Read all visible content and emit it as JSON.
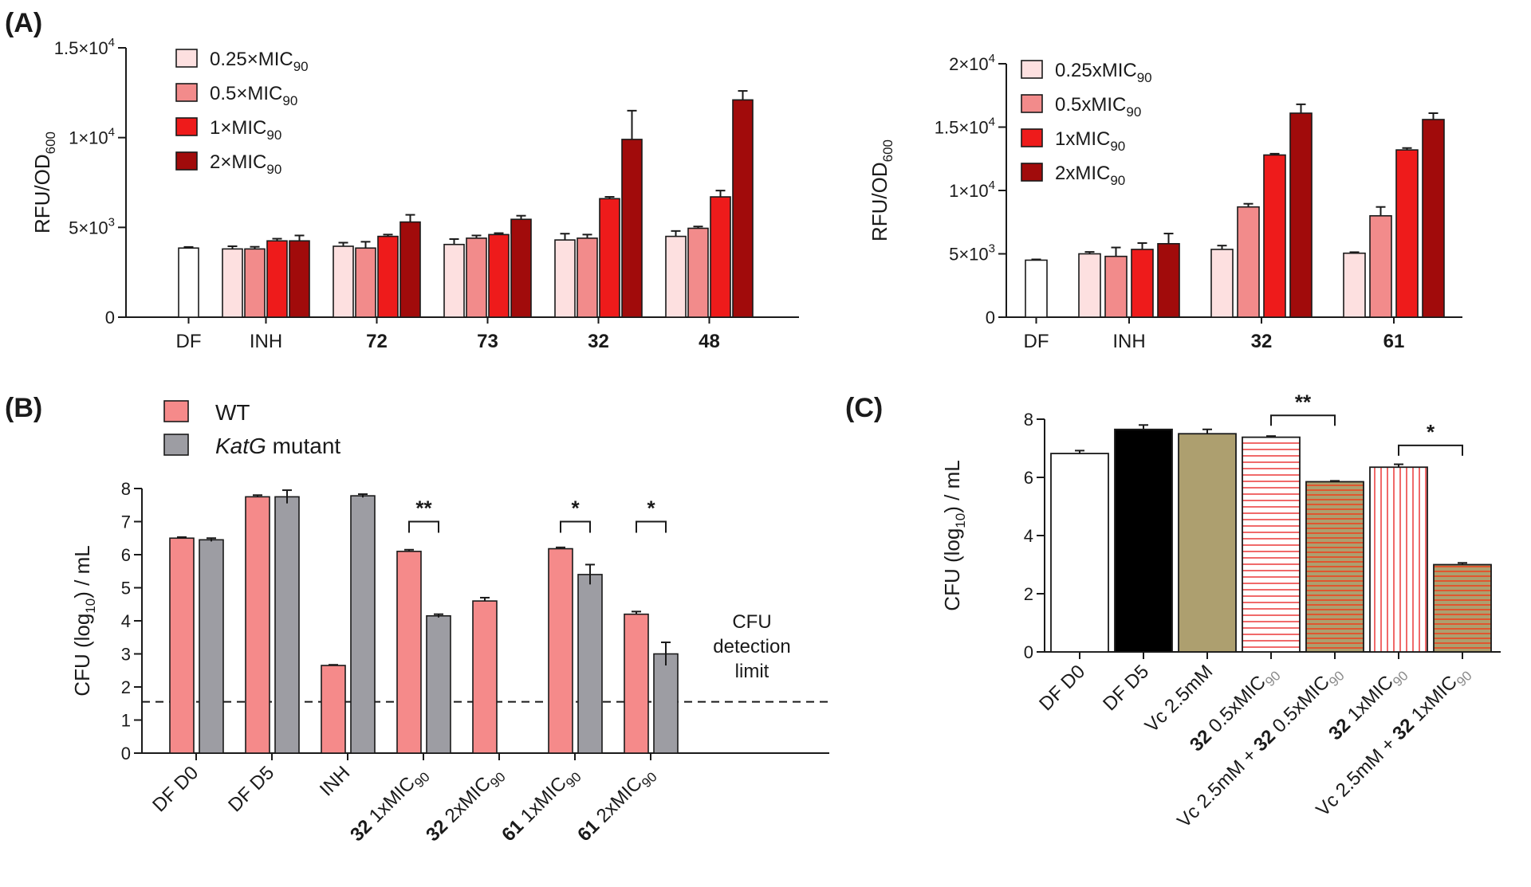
{
  "colors": {
    "mic025": "#fde0e0",
    "mic05": "#f28b8b",
    "mic1": "#ee1b1b",
    "mic2": "#a10b0b",
    "df": "#ffffff",
    "wt": "#f58a8a",
    "katg": "#9d9da3",
    "df_d5": "#000000",
    "vc": "#ad9f6f"
  },
  "chart_data": [
    {
      "id": "A-left",
      "type": "bar",
      "panel_label": "(A)",
      "ylabel": "RFU/OD",
      "ylabel_sub": "600",
      "ylim": [
        0,
        15000
      ],
      "yticks": [
        {
          "value": 0,
          "label": "0",
          "sup": ""
        },
        {
          "value": 5000,
          "label": "5×10",
          "sup": "3"
        },
        {
          "value": 10000,
          "label": "1×10",
          "sup": "4"
        },
        {
          "value": 15000,
          "label": "1.5×10",
          "sup": "4"
        }
      ],
      "legend": [
        {
          "name": "0.25×MIC",
          "sub": "90",
          "color": "mic025"
        },
        {
          "name": "0.5×MIC",
          "sub": "90",
          "color": "mic05"
        },
        {
          "name": "1×MIC",
          "sub": "90",
          "color": "mic1"
        },
        {
          "name": "2×MIC",
          "sub": "90",
          "color": "mic2"
        }
      ],
      "groups": [
        {
          "label": "DF",
          "bold": false,
          "bars": [
            {
              "value": 3850,
              "err": 60,
              "color": "df"
            }
          ]
        },
        {
          "label": "INH",
          "bold": false,
          "bars": [
            {
              "value": 3800,
              "err": 150,
              "color": "mic025"
            },
            {
              "value": 3800,
              "err": 120,
              "color": "mic05"
            },
            {
              "value": 4250,
              "err": 120,
              "color": "mic1"
            },
            {
              "value": 4250,
              "err": 300,
              "color": "mic2"
            }
          ]
        },
        {
          "label": "72",
          "bold": true,
          "bars": [
            {
              "value": 3950,
              "err": 200,
              "color": "mic025"
            },
            {
              "value": 3850,
              "err": 350,
              "color": "mic05"
            },
            {
              "value": 4500,
              "err": 100,
              "color": "mic1"
            },
            {
              "value": 5300,
              "err": 400,
              "color": "mic2"
            }
          ]
        },
        {
          "label": "73",
          "bold": true,
          "bars": [
            {
              "value": 4050,
              "err": 300,
              "color": "mic025"
            },
            {
              "value": 4400,
              "err": 150,
              "color": "mic05"
            },
            {
              "value": 4600,
              "err": 80,
              "color": "mic1"
            },
            {
              "value": 5450,
              "err": 200,
              "color": "mic2"
            }
          ]
        },
        {
          "label": "32",
          "bold": true,
          "bars": [
            {
              "value": 4300,
              "err": 350,
              "color": "mic025"
            },
            {
              "value": 4400,
              "err": 200,
              "color": "mic05"
            },
            {
              "value": 6600,
              "err": 100,
              "color": "mic1"
            },
            {
              "value": 9900,
              "err": 1600,
              "color": "mic2"
            }
          ]
        },
        {
          "label": "48",
          "bold": true,
          "bars": [
            {
              "value": 4500,
              "err": 300,
              "color": "mic025"
            },
            {
              "value": 4950,
              "err": 100,
              "color": "mic05"
            },
            {
              "value": 6700,
              "err": 350,
              "color": "mic1"
            },
            {
              "value": 12100,
              "err": 500,
              "color": "mic2"
            }
          ]
        }
      ]
    },
    {
      "id": "A-right",
      "type": "bar",
      "panel_label": "",
      "ylabel": "RFU/OD",
      "ylabel_sub": "600",
      "ylim": [
        0,
        20000
      ],
      "yticks": [
        {
          "value": 0,
          "label": "0",
          "sup": ""
        },
        {
          "value": 5000,
          "label": "5×10",
          "sup": "3"
        },
        {
          "value": 10000,
          "label": "1×10",
          "sup": "4"
        },
        {
          "value": 15000,
          "label": "1.5×10",
          "sup": "4"
        },
        {
          "value": 20000,
          "label": "2×10",
          "sup": "4"
        }
      ],
      "legend": [
        {
          "name": "0.25xMIC",
          "sub": "90",
          "color": "mic025"
        },
        {
          "name": "0.5xMIC",
          "sub": "90",
          "color": "mic05"
        },
        {
          "name": "1xMIC",
          "sub": "90",
          "color": "mic1"
        },
        {
          "name": "2xMIC",
          "sub": "90",
          "color": "mic2"
        }
      ],
      "groups": [
        {
          "label": "DF",
          "bold": false,
          "bars": [
            {
              "value": 4500,
              "err": 60,
              "color": "df"
            }
          ]
        },
        {
          "label": "INH",
          "bold": false,
          "bars": [
            {
              "value": 5000,
              "err": 150,
              "color": "mic025"
            },
            {
              "value": 4800,
              "err": 700,
              "color": "mic05"
            },
            {
              "value": 5350,
              "err": 500,
              "color": "mic1"
            },
            {
              "value": 5800,
              "err": 800,
              "color": "mic2"
            }
          ]
        },
        {
          "label": "32",
          "bold": true,
          "bars": [
            {
              "value": 5350,
              "err": 300,
              "color": "mic025"
            },
            {
              "value": 8700,
              "err": 250,
              "color": "mic05"
            },
            {
              "value": 12800,
              "err": 100,
              "color": "mic1"
            },
            {
              "value": 16100,
              "err": 700,
              "color": "mic2"
            }
          ]
        },
        {
          "label": "61",
          "bold": true,
          "bars": [
            {
              "value": 5050,
              "err": 80,
              "color": "mic025"
            },
            {
              "value": 8000,
              "err": 700,
              "color": "mic05"
            },
            {
              "value": 13200,
              "err": 150,
              "color": "mic1"
            },
            {
              "value": 15600,
              "err": 500,
              "color": "mic2"
            }
          ]
        }
      ]
    },
    {
      "id": "B",
      "type": "bar",
      "panel_label": "(B)",
      "ylabel": "CFU (log",
      "ylabel_sub": "10",
      "ylabel_tail": ") / mL",
      "ylim": [
        0,
        8
      ],
      "yticks": [
        {
          "value": 0,
          "label": "0",
          "sup": ""
        },
        {
          "value": 1,
          "label": "1",
          "sup": ""
        },
        {
          "value": 2,
          "label": "2",
          "sup": ""
        },
        {
          "value": 3,
          "label": "3",
          "sup": ""
        },
        {
          "value": 4,
          "label": "4",
          "sup": ""
        },
        {
          "value": 5,
          "label": "5",
          "sup": ""
        },
        {
          "value": 6,
          "label": "6",
          "sup": ""
        },
        {
          "value": 7,
          "label": "7",
          "sup": ""
        },
        {
          "value": 8,
          "label": "8",
          "sup": ""
        }
      ],
      "legend": [
        {
          "name": "WT",
          "italic_name": "",
          "color": "wt"
        },
        {
          "name": " mutant",
          "italic_name": "KatG",
          "color": "katg"
        }
      ],
      "detection_limit": 1.55,
      "detection_label": [
        "CFU",
        "detection",
        "limit"
      ],
      "groups": [
        {
          "label": "DF D0",
          "bold_part": "",
          "rest": "DF D0",
          "sub": "",
          "wt": 6.5,
          "wt_err": 0.03,
          "katg": 6.45,
          "katg_err": 0.05,
          "sig": ""
        },
        {
          "label": "DF D5",
          "bold_part": "",
          "rest": "DF D5",
          "sub": "",
          "wt": 7.75,
          "wt_err": 0.05,
          "katg": 7.75,
          "katg_err": 0.2,
          "sig": ""
        },
        {
          "label": "INH",
          "bold_part": "",
          "rest": "INH",
          "sub": "",
          "wt": 2.65,
          "wt_err": 0.02,
          "katg": 7.78,
          "katg_err": 0.05,
          "sig": ""
        },
        {
          "label": "32 1xMIC90",
          "bold_part": "32",
          "rest": " 1xMIC",
          "sub": "90",
          "wt": 6.1,
          "wt_err": 0.05,
          "katg": 4.15,
          "katg_err": 0.05,
          "sig": "**"
        },
        {
          "label": "32 2xMIC90",
          "bold_part": "32",
          "rest": " 2xMIC",
          "sub": "90",
          "wt": 4.6,
          "wt_err": 0.1,
          "katg": null,
          "katg_err": 0,
          "sig": ""
        },
        {
          "label": "61 1xMIC90",
          "bold_part": "61",
          "rest": " 1xMIC",
          "sub": "90",
          "wt": 6.18,
          "wt_err": 0.04,
          "katg": 5.4,
          "katg_err": 0.3,
          "sig": "*"
        },
        {
          "label": "61 2xMIC90",
          "bold_part": "61",
          "rest": " 2xMIC",
          "sub": "90",
          "wt": 4.2,
          "wt_err": 0.08,
          "katg": 3.0,
          "katg_err": 0.35,
          "sig": "*"
        }
      ]
    },
    {
      "id": "C",
      "type": "bar",
      "panel_label": "(C)",
      "ylabel": "CFU (log",
      "ylabel_sub": "10",
      "ylabel_tail": ") / mL",
      "ylim": [
        0,
        8
      ],
      "yticks": [
        {
          "value": 0,
          "label": "0",
          "sup": ""
        },
        {
          "value": 2,
          "label": "2",
          "sup": ""
        },
        {
          "value": 4,
          "label": "4",
          "sup": ""
        },
        {
          "value": 6,
          "label": "6",
          "sup": ""
        },
        {
          "value": 8,
          "label": "8",
          "sup": ""
        }
      ],
      "bars": [
        {
          "pre": "",
          "bold": "",
          "rest": "DF D0",
          "sub": "",
          "value": 6.82,
          "err": 0.1,
          "fill": "white"
        },
        {
          "pre": "",
          "bold": "",
          "rest": "DF D5",
          "sub": "",
          "value": 7.65,
          "err": 0.15,
          "fill": "black"
        },
        {
          "pre": "",
          "bold": "",
          "rest": "Vc 2.5mM",
          "sub": "",
          "value": 7.5,
          "err": 0.15,
          "fill": "olive"
        },
        {
          "pre": "",
          "bold": "32",
          "rest": " 0.5xMIC",
          "sub": "90",
          "value": 7.38,
          "err": 0.04,
          "fill": "hstripe-red"
        },
        {
          "pre": "Vc 2.5mM + ",
          "bold": "32",
          "rest": " 0.5xMIC",
          "sub": "90",
          "value": 5.85,
          "err": 0.03,
          "fill": "hstripe-olive"
        },
        {
          "pre": "",
          "bold": "32",
          "rest": " 1xMIC",
          "sub": "90",
          "value": 6.35,
          "err": 0.1,
          "fill": "vstripe-red"
        },
        {
          "pre": "Vc 2.5mM + ",
          "bold": "32",
          "rest": " 1xMIC",
          "sub": "90",
          "value": 3.0,
          "err": 0.06,
          "fill": "hstripe-olive"
        }
      ],
      "brackets": [
        {
          "from": 3,
          "to": 4,
          "label": "**"
        },
        {
          "from": 5,
          "to": 6,
          "label": "*"
        }
      ]
    }
  ]
}
